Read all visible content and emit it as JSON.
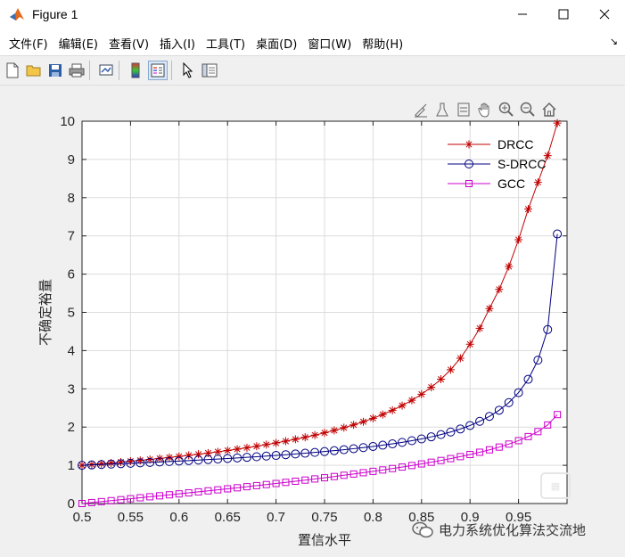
{
  "window": {
    "title": "Figure 1"
  },
  "menu": {
    "items": [
      "文件(F)",
      "编辑(E)",
      "查看(V)",
      "插入(I)",
      "工具(T)",
      "桌面(D)",
      "窗口(W)",
      "帮助(H)"
    ]
  },
  "watermark": {
    "text": "电力系统优化算法交流地"
  },
  "chart_data": {
    "type": "line",
    "xlabel": "置信水平",
    "ylabel": "不确定裕量",
    "xlim": [
      0.5,
      1.0
    ],
    "ylim": [
      0,
      10
    ],
    "xticks": [
      0.5,
      0.55,
      0.6,
      0.65,
      0.7,
      0.75,
      0.8,
      0.85,
      0.9,
      0.95
    ],
    "yticks": [
      0,
      1,
      2,
      3,
      4,
      5,
      6,
      7,
      8,
      9,
      10
    ],
    "grid": true,
    "legend_position": "top-right",
    "x": [
      0.5,
      0.51,
      0.52,
      0.53,
      0.54,
      0.55,
      0.56,
      0.57,
      0.58,
      0.59,
      0.6,
      0.61,
      0.62,
      0.63,
      0.64,
      0.65,
      0.66,
      0.67,
      0.68,
      0.69,
      0.7,
      0.71,
      0.72,
      0.73,
      0.74,
      0.75,
      0.76,
      0.77,
      0.78,
      0.79,
      0.8,
      0.81,
      0.82,
      0.83,
      0.84,
      0.85,
      0.86,
      0.87,
      0.88,
      0.89,
      0.9,
      0.91,
      0.92,
      0.93,
      0.94,
      0.95,
      0.96,
      0.97,
      0.98,
      0.99
    ],
    "series": [
      {
        "name": "DRCC",
        "color": "#c00000",
        "marker": "asterisk",
        "values": [
          1.0,
          1.02,
          1.04,
          1.061,
          1.083,
          1.106,
          1.129,
          1.154,
          1.179,
          1.205,
          1.232,
          1.261,
          1.29,
          1.321,
          1.353,
          1.387,
          1.423,
          1.46,
          1.499,
          1.541,
          1.584,
          1.631,
          1.68,
          1.733,
          1.789,
          1.849,
          1.913,
          1.983,
          2.058,
          2.14,
          2.23,
          2.329,
          2.439,
          2.562,
          2.7,
          2.858,
          3.04,
          3.251,
          3.5,
          3.8,
          4.167,
          4.583,
          5.1,
          5.6,
          6.2,
          6.9,
          7.7,
          8.4,
          9.1,
          9.95
        ]
      },
      {
        "name": "S-DRCC",
        "color": "#000080",
        "marker": "circle",
        "values": [
          1.0,
          1.01,
          1.02,
          1.031,
          1.041,
          1.052,
          1.063,
          1.075,
          1.086,
          1.098,
          1.111,
          1.123,
          1.136,
          1.15,
          1.163,
          1.178,
          1.193,
          1.208,
          1.224,
          1.241,
          1.258,
          1.277,
          1.296,
          1.316,
          1.337,
          1.36,
          1.383,
          1.408,
          1.435,
          1.463,
          1.493,
          1.526,
          1.561,
          1.6,
          1.643,
          1.69,
          1.744,
          1.803,
          1.871,
          1.95,
          2.041,
          2.15,
          2.28,
          2.44,
          2.64,
          2.9,
          3.25,
          3.75,
          4.55,
          7.05
        ]
      },
      {
        "name": "GCC",
        "color": "#cc00cc",
        "marker": "square",
        "values": [
          0.0,
          0.025,
          0.05,
          0.075,
          0.1,
          0.126,
          0.151,
          0.177,
          0.202,
          0.228,
          0.253,
          0.279,
          0.305,
          0.332,
          0.358,
          0.385,
          0.412,
          0.44,
          0.468,
          0.496,
          0.524,
          0.553,
          0.583,
          0.613,
          0.643,
          0.674,
          0.706,
          0.739,
          0.772,
          0.806,
          0.842,
          0.878,
          0.915,
          0.954,
          0.994,
          1.036,
          1.08,
          1.126,
          1.175,
          1.227,
          1.282,
          1.341,
          1.405,
          1.476,
          1.555,
          1.645,
          1.751,
          1.881,
          2.054,
          2.326
        ]
      }
    ]
  }
}
